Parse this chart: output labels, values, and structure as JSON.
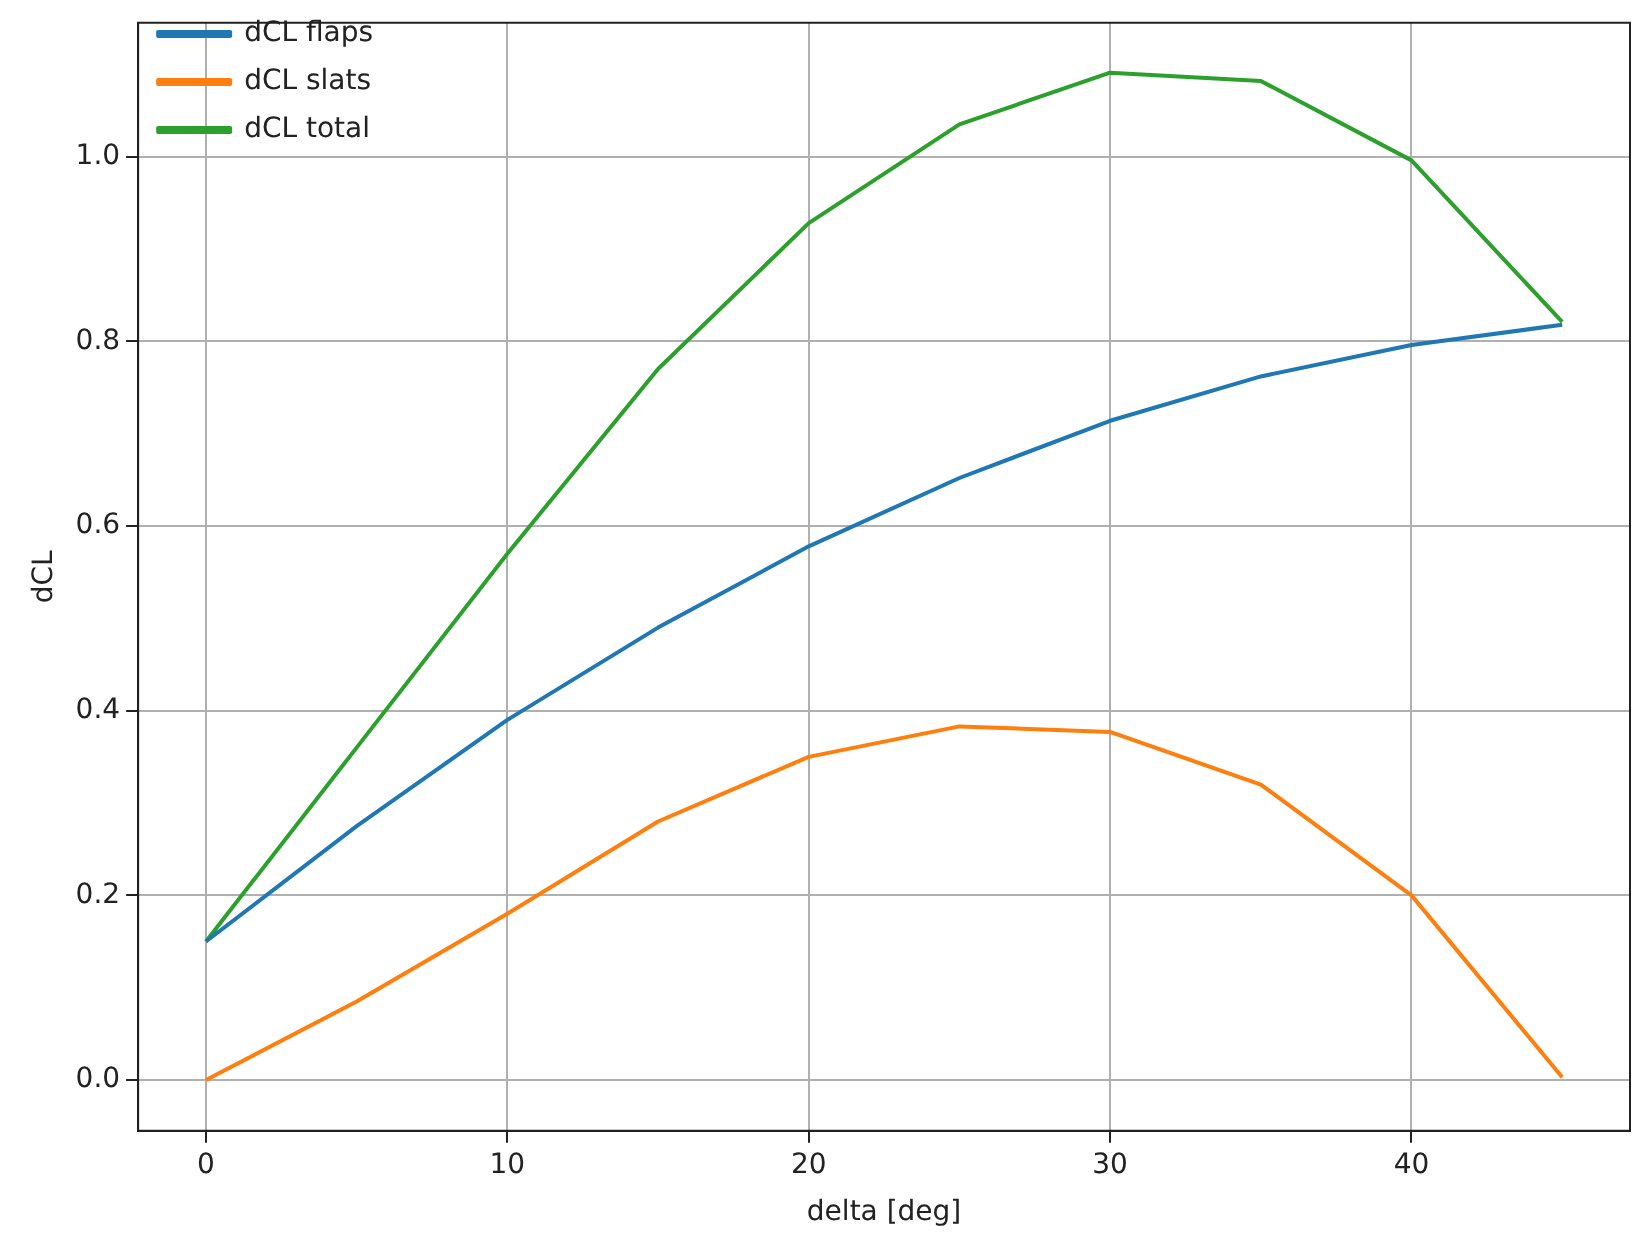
{
  "chart_data": {
    "type": "line",
    "xlabel": "delta [deg]",
    "ylabel": "dCL",
    "x": [
      0,
      5,
      10,
      15,
      20,
      25,
      30,
      35,
      40,
      45
    ],
    "series": [
      {
        "name": "dCL flaps",
        "color": "#1f77b4",
        "values": [
          0.15,
          0.275,
          0.39,
          0.49,
          0.578,
          0.652,
          0.714,
          0.762,
          0.796,
          0.818
        ]
      },
      {
        "name": "dCL slats",
        "color": "#ff7f0e",
        "values": [
          0,
          0.085,
          0.18,
          0.28,
          0.35,
          0.383,
          0.377,
          0.32,
          0.2,
          0.003
        ]
      },
      {
        "name": "dCL total",
        "color": "#2ca02c",
        "values": [
          0.15,
          0.36,
          0.57,
          0.77,
          0.928,
          1.035,
          1.091,
          1.082,
          0.996,
          0.821
        ]
      }
    ],
    "xlim": [
      -2.25,
      47.25
    ],
    "ylim": [
      -0.055,
      1.145
    ],
    "xticks": [
      0,
      10,
      20,
      30,
      40
    ],
    "yticks": [
      {
        "value": 0,
        "label": "0.0"
      },
      {
        "value": 0.2,
        "label": "0.2"
      },
      {
        "value": 0.4,
        "label": "0.4"
      },
      {
        "value": 0.6,
        "label": "0.6"
      },
      {
        "value": 0.8,
        "label": "0.8"
      },
      {
        "value": 1,
        "label": "1.0"
      }
    ],
    "grid": true,
    "legend": "top left",
    "marker": "none",
    "line_style": "solid"
  }
}
